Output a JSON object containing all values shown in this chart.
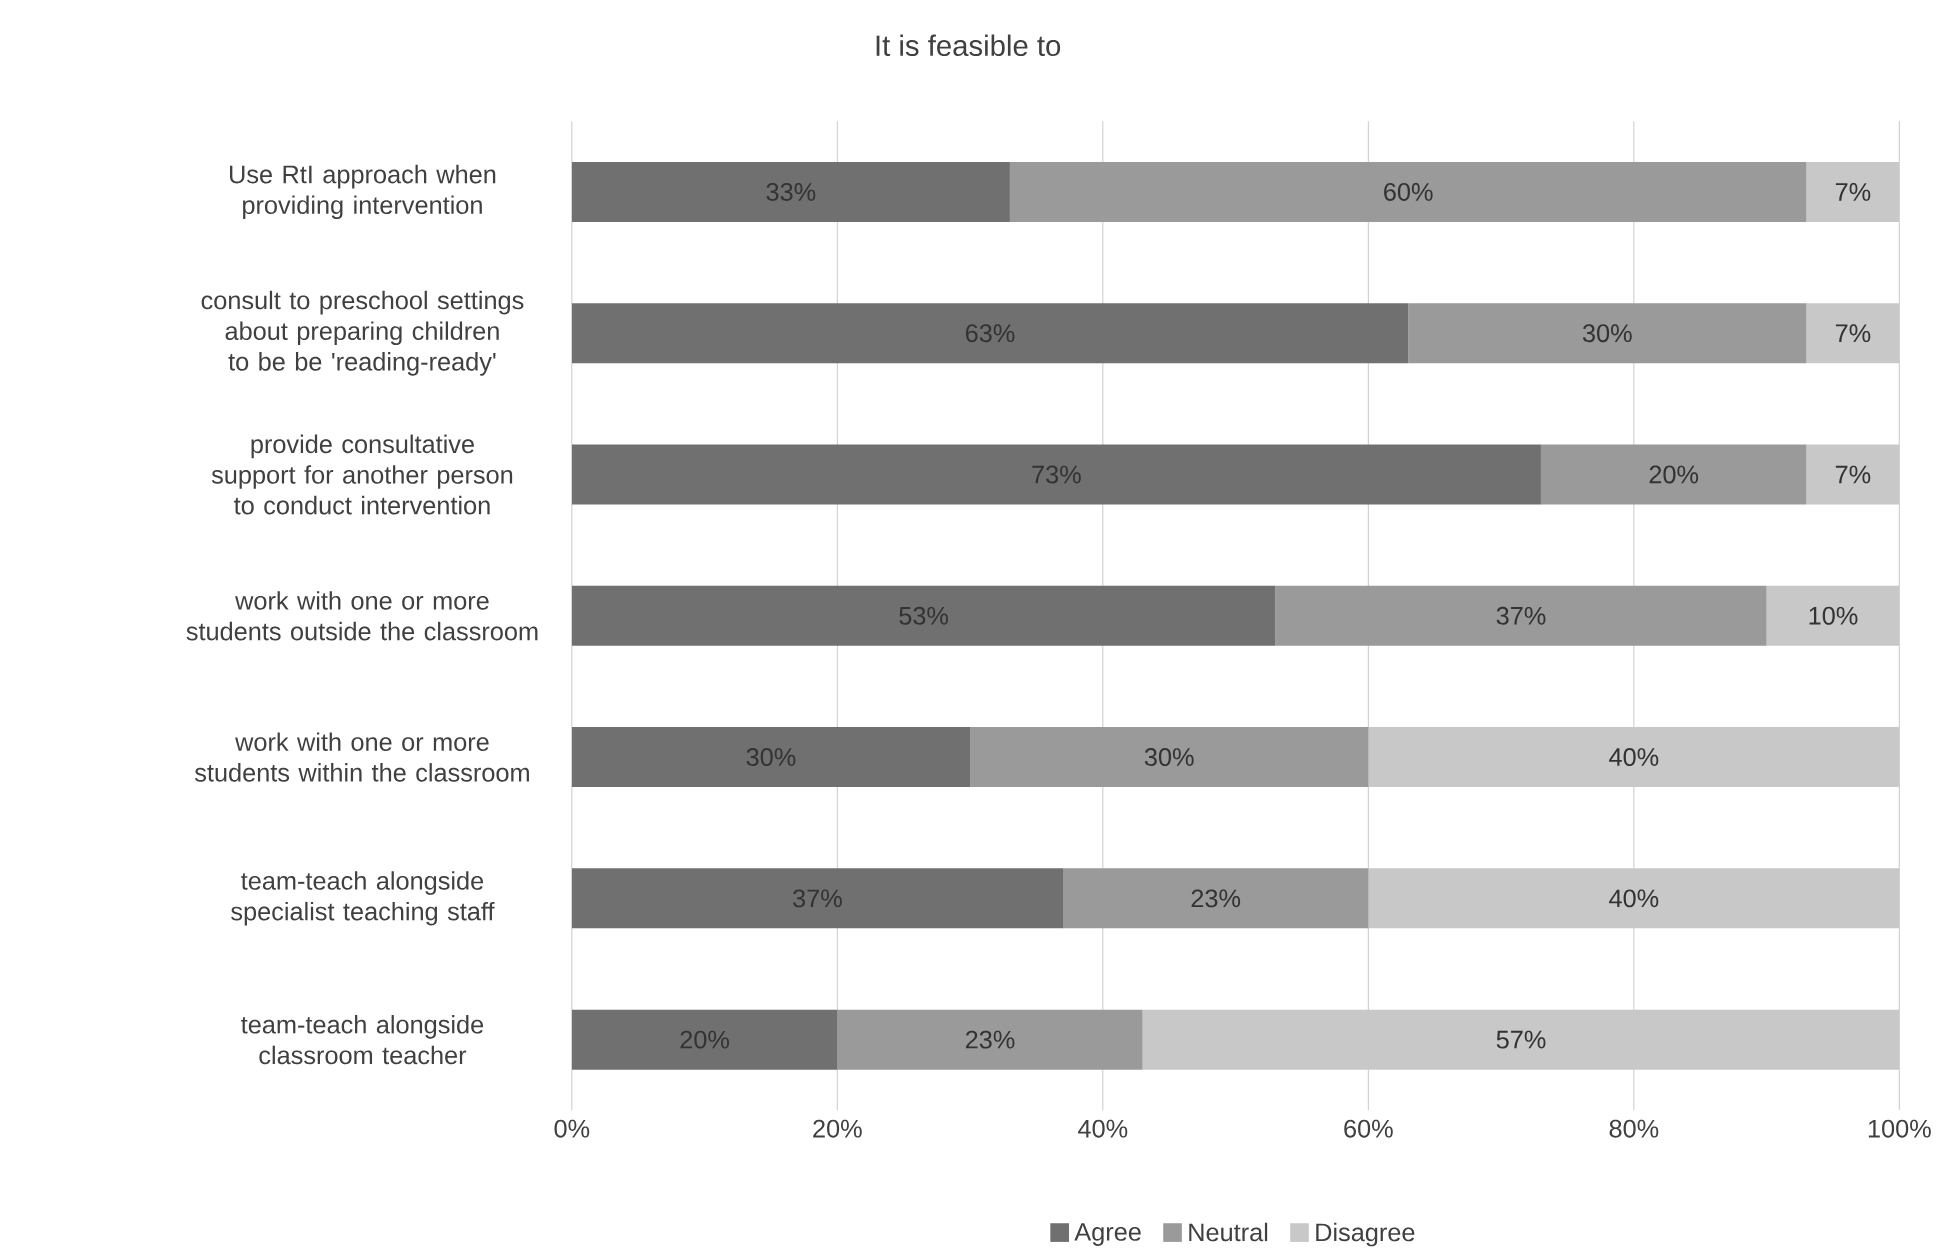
{
  "chart_data": {
    "type": "bar",
    "orientation": "horizontal",
    "stacked": true,
    "title": "It is feasible to",
    "categories": [
      "Use RtI  approach when providing intervention",
      "consult to preschool settings about preparing children to be be 'reading-ready'",
      "provide consultative support for another person to conduct intervention",
      "work with one or more students outside the classroom",
      "work with one or more students within the classroom",
      "team-teach alongside specialist teaching staff",
      "team-teach alongside classroom teacher"
    ],
    "series": [
      {
        "name": "Agree",
        "color": "#707070",
        "values": [
          33,
          63,
          73,
          53,
          30,
          37,
          20
        ],
        "value_labels": [
          "33%",
          "63%",
          "73%",
          "53%",
          "30%",
          "37%",
          "20%"
        ]
      },
      {
        "name": "Neutral",
        "color": "#9a9a9a",
        "values": [
          60,
          30,
          20,
          37,
          30,
          23,
          23
        ],
        "value_labels": [
          "60%",
          "30%",
          "20%",
          "37%",
          "30%",
          "23%",
          "23%"
        ]
      },
      {
        "name": "Disagree",
        "color": "#c8c8c8",
        "values": [
          7,
          7,
          7,
          10,
          40,
          40,
          57
        ],
        "value_labels": [
          "7%",
          "7%",
          "7%",
          "10%",
          "40%",
          "40%",
          "57%"
        ]
      }
    ],
    "xlim": [
      0,
      100
    ],
    "xticks": [
      {
        "value": 0,
        "label": "0%"
      },
      {
        "value": 20,
        "label": "20%"
      },
      {
        "value": 40,
        "label": "40%"
      },
      {
        "value": 60,
        "label": "60%"
      },
      {
        "value": 80,
        "label": "80%"
      },
      {
        "value": 100,
        "label": "100%"
      }
    ],
    "grid": "x",
    "legend": "bottom"
  }
}
